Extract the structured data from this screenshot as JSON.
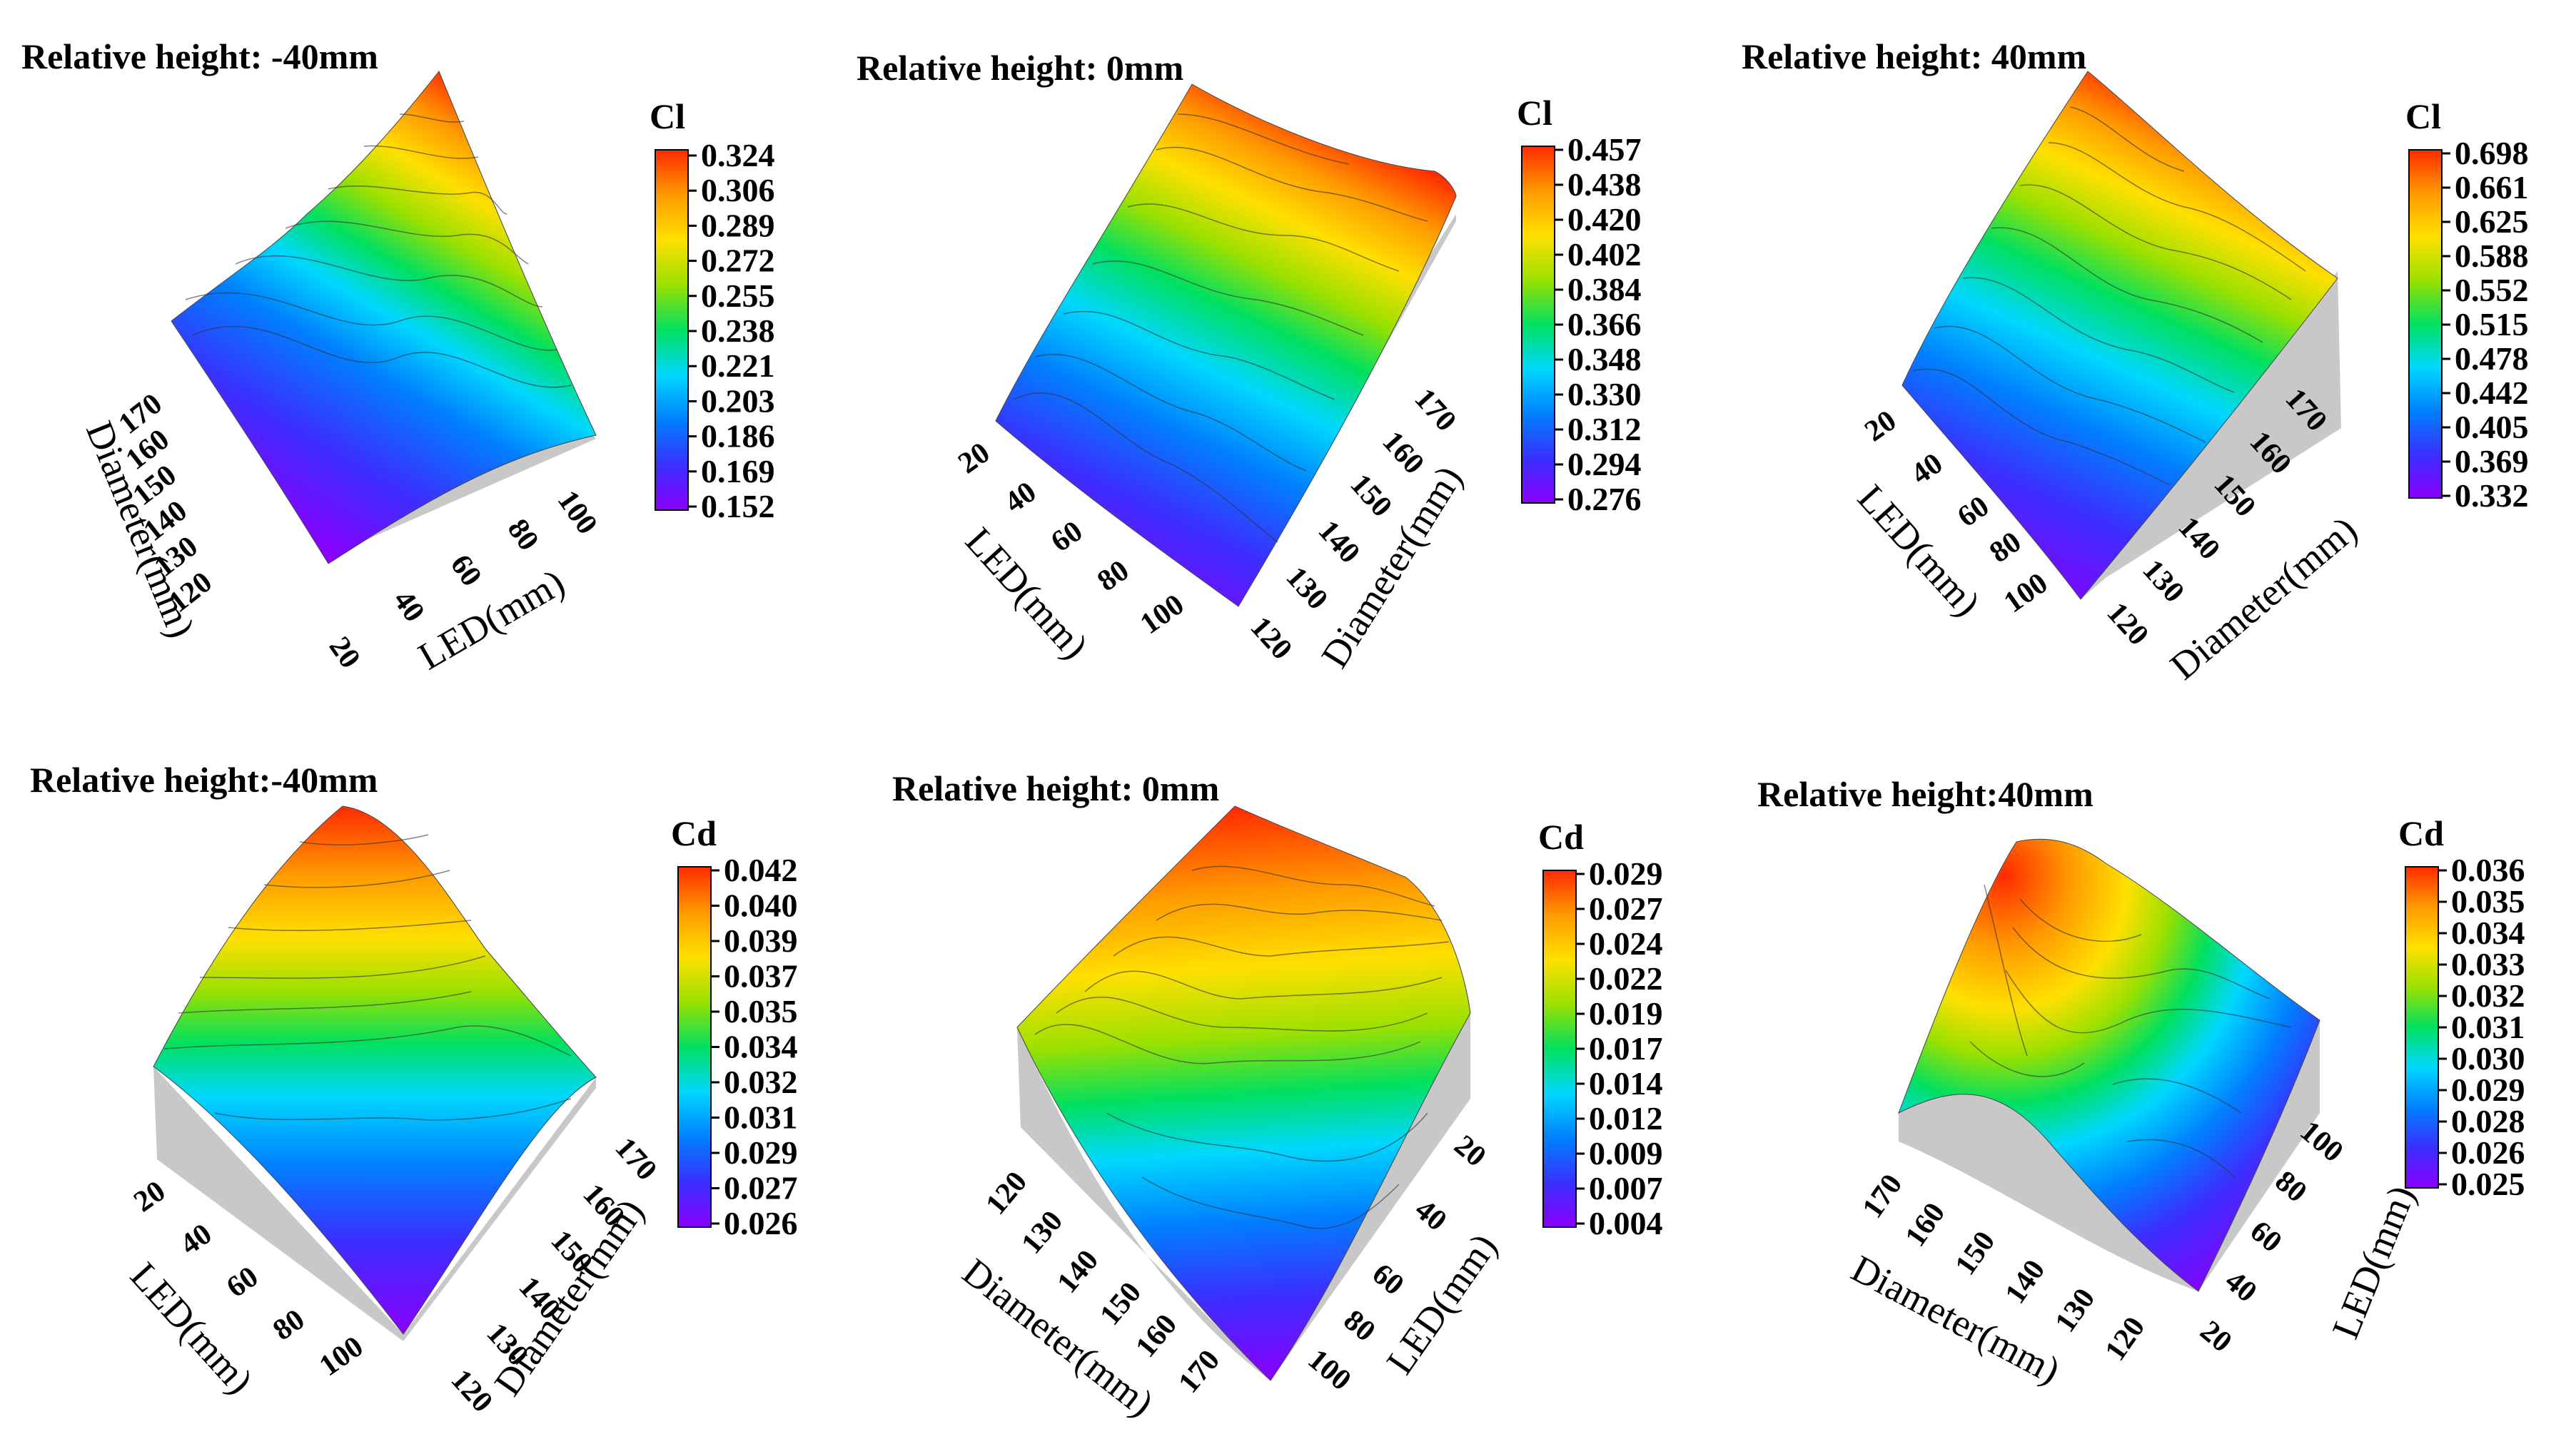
{
  "chart_data": [
    {
      "type": "surface3d",
      "title": "Relative height: -40mm",
      "metric": "Cl",
      "axes": {
        "axis_a_label": "Diameter(mm)",
        "axis_a_ticks": [
          "120",
          "130",
          "140",
          "150",
          "160",
          "170"
        ],
        "axis_b_label": "LED(mm)",
        "axis_b_ticks": [
          "20",
          "40",
          "60",
          "80",
          "100"
        ]
      },
      "colorbar": {
        "label": "Cl",
        "ticks": [
          "0.324",
          "0.306",
          "0.289",
          "0.272",
          "0.255",
          "0.238",
          "0.221",
          "0.203",
          "0.186",
          "0.169",
          "0.152"
        ]
      }
    },
    {
      "type": "surface3d",
      "title": "Relative height: 0mm",
      "metric": "Cl",
      "axes": {
        "axis_a_label": "LED(mm)",
        "axis_a_ticks": [
          "20",
          "40",
          "60",
          "80",
          "100"
        ],
        "axis_b_label": "Diameter(mm)",
        "axis_b_ticks": [
          "120",
          "130",
          "140",
          "150",
          "160",
          "170"
        ]
      },
      "colorbar": {
        "label": "Cl",
        "ticks": [
          "0.457",
          "0.438",
          "0.420",
          "0.402",
          "0.384",
          "0.366",
          "0.348",
          "0.330",
          "0.312",
          "0.294",
          "0.276"
        ]
      }
    },
    {
      "type": "surface3d",
      "title": "Relative height: 40mm",
      "metric": "Cl",
      "axes": {
        "axis_a_label": "LED(mm)",
        "axis_a_ticks": [
          "20",
          "40",
          "60",
          "80",
          "100"
        ],
        "axis_b_label": "Diameter(mm)",
        "axis_b_ticks": [
          "120",
          "130",
          "140",
          "150",
          "160",
          "170"
        ]
      },
      "colorbar": {
        "label": "Cl",
        "ticks": [
          "0.698",
          "0.661",
          "0.625",
          "0.588",
          "0.552",
          "0.515",
          "0.478",
          "0.442",
          "0.405",
          "0.369",
          "0.332"
        ]
      }
    },
    {
      "type": "surface3d",
      "title": "Relative height:-40mm",
      "metric": "Cd",
      "axes": {
        "axis_a_label": "LED(mm)",
        "axis_a_ticks": [
          "20",
          "40",
          "60",
          "80",
          "100"
        ],
        "axis_b_label": "Diameter(mm)",
        "axis_b_ticks": [
          "120",
          "130",
          "140",
          "150",
          "160",
          "170"
        ]
      },
      "colorbar": {
        "label": "Cd",
        "ticks": [
          "0.042",
          "0.040",
          "0.039",
          "0.037",
          "0.035",
          "0.034",
          "0.032",
          "0.031",
          "0.029",
          "0.027",
          "0.026"
        ]
      }
    },
    {
      "type": "surface3d",
      "title": "Relative height: 0mm",
      "metric": "Cd",
      "axes": {
        "axis_a_label": "Diameter(mm)",
        "axis_a_ticks": [
          "120",
          "130",
          "140",
          "150",
          "160",
          "170"
        ],
        "axis_b_label": "LED(mm)",
        "axis_b_ticks": [
          "20",
          "40",
          "60",
          "80",
          "100"
        ]
      },
      "colorbar": {
        "label": "Cd",
        "ticks": [
          "0.029",
          "0.027",
          "0.024",
          "0.022",
          "0.019",
          "0.017",
          "0.014",
          "0.012",
          "0.009",
          "0.007",
          "0.004"
        ]
      }
    },
    {
      "type": "surface3d",
      "title": "Relative height:40mm",
      "metric": "Cd",
      "axes": {
        "axis_a_label": "Diameter(mm)",
        "axis_a_ticks": [
          "170",
          "160",
          "150",
          "140",
          "130",
          "120"
        ],
        "axis_b_label": "LED(mm)",
        "axis_b_ticks": [
          "20",
          "40",
          "60",
          "80",
          "100"
        ]
      },
      "colorbar": {
        "label": "Cd",
        "ticks": [
          "0.036",
          "0.035",
          "0.034",
          "0.033",
          "0.032",
          "0.031",
          "0.030",
          "0.029",
          "0.028",
          "0.026",
          "0.025"
        ]
      }
    }
  ],
  "colormap": [
    "#8a00ff",
    "#3a30ff",
    "#0080ff",
    "#00d8ff",
    "#00e060",
    "#9be000",
    "#ffe000",
    "#ff9a00",
    "#ff2a00"
  ]
}
